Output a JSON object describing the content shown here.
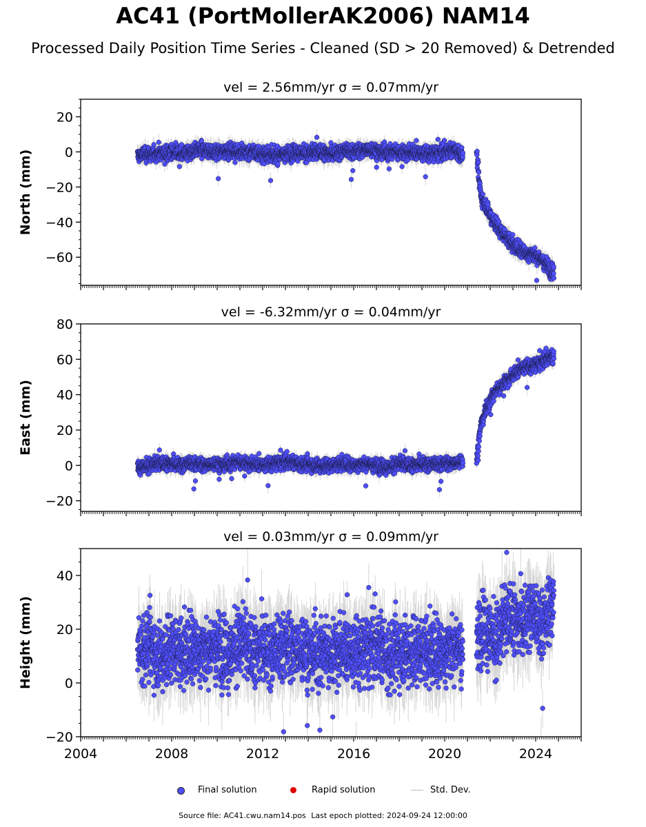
{
  "header": {
    "title": "AC41 (PortMollerAK2006) NAM14",
    "subtitle": "Processed Daily Position Time Series - Cleaned (SD > 20 Removed) & Detrended"
  },
  "legend": {
    "final_label": "Final solution",
    "rapid_label": "Rapid solution",
    "std_label": "Std. Dev.",
    "final_color": "#4f4fff",
    "rapid_color": "#e00000",
    "std_color": "#bbbbbb"
  },
  "footer": {
    "source": "Source file: AC41.cwu.nam14.pos",
    "last_epoch": "Last epoch plotted: 2024-09-24 12:00:00"
  },
  "chart_data": [
    {
      "type": "scatter",
      "title": "vel = 2.56mm/yr   σ = 0.07mm/yr",
      "ylabel": "North (mm)",
      "xlim": [
        2004,
        2026
      ],
      "ylim": [
        -76,
        30
      ],
      "yticks": [
        20,
        0,
        -20,
        -40,
        -60
      ],
      "ytick_labels": [
        "20",
        "0",
        "−20",
        "−40",
        "−60"
      ],
      "xticks": [],
      "xtick_labels": [],
      "series": [
        {
          "segment": "2006.5-2020.8",
          "x": [
            2006.5,
            2007.0,
            2007.5,
            2008.0,
            2008.5,
            2009.0,
            2009.5,
            2010.0,
            2010.5,
            2011.0,
            2011.5,
            2012.0,
            2012.5,
            2013.0,
            2013.5,
            2014.0,
            2014.5,
            2015.0,
            2015.5,
            2016.0,
            2016.5,
            2017.0,
            2017.5,
            2018.0,
            2018.5,
            2019.0,
            2019.5,
            2020.0,
            2020.5,
            2020.8
          ],
          "y": [
            -2,
            -1,
            -1,
            0,
            -1,
            0,
            1,
            0,
            1,
            0,
            0,
            -1,
            -2,
            -1,
            0,
            -1,
            0,
            -1,
            0,
            0,
            1,
            1,
            0,
            0,
            0,
            -1,
            -1,
            0,
            1,
            -2
          ]
        },
        {
          "segment": "2021.4-2024.8",
          "x": [
            2021.4,
            2021.5,
            2021.6,
            2021.8,
            2022.0,
            2022.2,
            2022.4,
            2022.6,
            2022.8,
            2023.0,
            2023.2,
            2023.4,
            2023.6,
            2023.8,
            2024.0,
            2024.2,
            2024.4,
            2024.6,
            2024.8
          ],
          "y": [
            1,
            -15,
            -25,
            -30,
            -36,
            -40,
            -44,
            -47,
            -50,
            -53,
            -55,
            -56,
            -58,
            -58,
            -59,
            -61,
            -63,
            -66,
            -69
          ]
        }
      ]
    },
    {
      "type": "scatter",
      "title": "vel = -6.32mm/yr   σ = 0.04mm/yr",
      "ylabel": "East (mm)",
      "xlim": [
        2004,
        2026
      ],
      "ylim": [
        -26,
        80
      ],
      "yticks": [
        80,
        60,
        40,
        20,
        0,
        -20
      ],
      "ytick_labels": [
        "80",
        "60",
        "40",
        "20",
        "0",
        "−20"
      ],
      "xticks": [],
      "xtick_labels": [],
      "series": [
        {
          "segment": "2006.5-2020.8",
          "x": [
            2006.5,
            2007.0,
            2007.5,
            2008.0,
            2008.5,
            2009.0,
            2009.5,
            2010.0,
            2010.5,
            2011.0,
            2011.5,
            2012.0,
            2012.5,
            2013.0,
            2013.5,
            2014.0,
            2014.5,
            2015.0,
            2015.5,
            2016.0,
            2016.5,
            2017.0,
            2017.5,
            2018.0,
            2018.5,
            2019.0,
            2019.5,
            2020.0,
            2020.5,
            2020.8
          ],
          "y": [
            -1,
            0,
            1,
            1,
            0,
            1,
            0,
            1,
            1,
            2,
            1,
            0,
            1,
            2,
            1,
            1,
            0,
            0,
            1,
            0,
            1,
            0,
            -1,
            1,
            0,
            1,
            0,
            1,
            1,
            3
          ]
        },
        {
          "segment": "2021.4-2024.8",
          "x": [
            2021.4,
            2021.5,
            2021.6,
            2021.8,
            2022.0,
            2022.2,
            2022.4,
            2022.6,
            2022.8,
            2023.0,
            2023.2,
            2023.4,
            2023.6,
            2023.8,
            2024.0,
            2024.2,
            2024.4,
            2024.6,
            2024.8
          ],
          "y": [
            2,
            15,
            24,
            31,
            37,
            41,
            44,
            47,
            49,
            51,
            53,
            55,
            56,
            56,
            57,
            58,
            60,
            61,
            61
          ]
        }
      ]
    },
    {
      "type": "scatter",
      "title": "vel = 0.03mm/yr   σ = 0.09mm/yr",
      "ylabel": "Height (mm)",
      "xlim": [
        2004,
        2026
      ],
      "ylim": [
        -20,
        50
      ],
      "yticks": [
        40,
        20,
        0,
        -20
      ],
      "ytick_labels": [
        "40",
        "20",
        "0",
        "−20"
      ],
      "xticks": [
        2004,
        2008,
        2012,
        2016,
        2020,
        2024
      ],
      "xtick_labels": [
        "2004",
        "2008",
        "2012",
        "2016",
        "2020",
        "2024"
      ],
      "series": [
        {
          "segment": "2006.5-2020.8",
          "x": [
            2006.5,
            2007.0,
            2007.5,
            2008.0,
            2008.5,
            2009.0,
            2009.5,
            2010.0,
            2010.5,
            2011.0,
            2011.5,
            2012.0,
            2012.5,
            2013.0,
            2013.5,
            2014.0,
            2014.5,
            2015.0,
            2015.5,
            2016.0,
            2016.5,
            2017.0,
            2017.5,
            2018.0,
            2018.5,
            2019.0,
            2019.5,
            2020.0,
            2020.5,
            2020.8
          ],
          "y": [
            12,
            15,
            10,
            14,
            11,
            13,
            12,
            14,
            11,
            15,
            12,
            13,
            10,
            14,
            12,
            13,
            11,
            12,
            13,
            11,
            12,
            14,
            10,
            13,
            12,
            13,
            11,
            12,
            14,
            12
          ]
        },
        {
          "segment": "2021.4-2024.8",
          "x": [
            2021.4,
            2021.5,
            2021.6,
            2021.8,
            2022.0,
            2022.2,
            2022.4,
            2022.6,
            2022.8,
            2023.0,
            2023.2,
            2023.4,
            2023.6,
            2023.8,
            2024.0,
            2024.2,
            2024.4,
            2024.6,
            2024.8
          ],
          "y": [
            14,
            18,
            22,
            20,
            19,
            16,
            17,
            22,
            24,
            25,
            23,
            22,
            24,
            26,
            22,
            21,
            23,
            27,
            30
          ]
        }
      ]
    }
  ]
}
